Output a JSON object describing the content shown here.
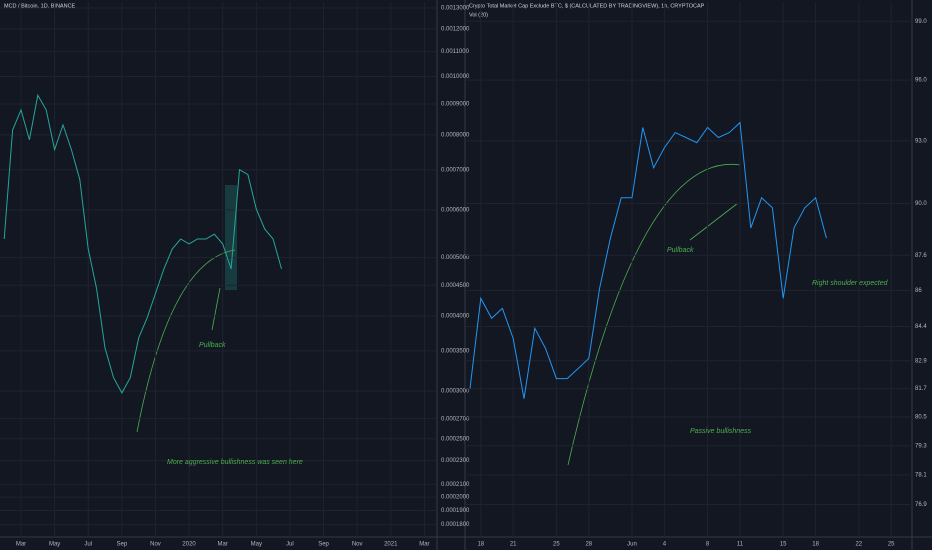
{
  "chart_data": [
    {
      "type": "line",
      "title": "MCD / Bitcoin, 1D, BINANCE",
      "log": true,
      "grid": true,
      "color": "#26a69a",
      "categories": [
        null,
        null,
        "Mar",
        null,
        null,
        null,
        "May",
        null,
        null,
        null,
        "Jul",
        null,
        null,
        null,
        "Sep",
        null,
        null,
        null,
        "Nov",
        null,
        null,
        null,
        "2020",
        null,
        null,
        null,
        "Mar",
        null,
        null,
        null,
        "May",
        null,
        null,
        null,
        "Jul",
        null,
        null,
        null,
        "Sep",
        null,
        null,
        null,
        "Nov",
        null,
        null,
        null,
        "2021",
        null,
        null,
        null,
        "Mar",
        null
      ],
      "values": [
        0.000537,
        0.000815,
        0.00088,
        0.000785,
        0.000931,
        0.00088,
        0.000756,
        0.000831,
        0.000756,
        0.000674,
        0.000517,
        0.000444,
        0.000354,
        0.000316,
        0.000298,
        0.000316,
        0.000368,
        0.000397,
        0.000436,
        0.000479,
        0.000517,
        0.000537,
        0.000527,
        0.000537,
        0.000537,
        0.000547,
        0.000527,
        0.000479,
        0.0007,
        0.000687,
        0.000602,
        0.000558,
        0.000537,
        0.000479,
        null,
        null,
        null,
        null,
        null,
        null,
        null,
        null,
        null,
        null,
        null,
        null,
        null,
        null,
        null,
        null,
        null,
        null
      ],
      "ylim": [
        0.000173,
        0.00133
      ],
      "yticks": [
        {
          "value": 0.0013,
          "label": "0.0013000"
        },
        {
          "value": 0.0012,
          "label": "0.0012000"
        },
        {
          "value": 0.0011,
          "label": "0.0011000"
        },
        {
          "value": 0.001,
          "label": "0.0010000"
        },
        {
          "value": 0.0009,
          "label": "0.0009000"
        },
        {
          "value": 0.0008,
          "label": "0.0008000"
        },
        {
          "value": 0.0007,
          "label": "0.0007000"
        },
        {
          "value": 0.0006,
          "label": "0.0006000"
        },
        {
          "value": 0.0005,
          "label": "0.0005000"
        },
        {
          "value": 0.00045,
          "label": "0.0004500"
        },
        {
          "value": 0.0004,
          "label": "0.0004000"
        },
        {
          "value": 0.00035,
          "label": "0.0003500"
        },
        {
          "value": 0.0003,
          "label": "0.0003000"
        },
        {
          "value": 0.00027,
          "label": "0.0002700"
        },
        {
          "value": 0.00025,
          "label": "0.0002500"
        },
        {
          "value": 0.00023,
          "label": "0.0002300"
        },
        {
          "value": 0.00021,
          "label": "0.0002100"
        },
        {
          "value": 0.0002,
          "label": "0.0002000"
        },
        {
          "value": 0.00019,
          "label": "0.0001900"
        },
        {
          "value": 0.00018,
          "label": "0.0001800"
        }
      ],
      "annotations": [
        "Pullback",
        "More aggressive bullishness was seen here"
      ]
    },
    {
      "type": "line",
      "title": "Crypto Total Market Cap Exclude BTC, $ (CALCULATED BY TRADINGVIEW), 1h, CRYPTOCAP",
      "subtitle": "Vol (20)",
      "log": true,
      "grid": true,
      "color": "#2196f3",
      "categories": [
        null,
        "18",
        null,
        null,
        "21",
        null,
        null,
        null,
        "25",
        null,
        null,
        "28",
        null,
        null,
        null,
        "Jun",
        null,
        null,
        "4",
        null,
        null,
        null,
        "8",
        null,
        null,
        "11",
        null,
        null,
        null,
        "15",
        null,
        null,
        "18",
        null,
        null,
        null,
        "22",
        null,
        null,
        "25",
        null
      ],
      "values": [
        81.7,
        85.65,
        84.76,
        85.2,
        83.87,
        81.27,
        84.32,
        83.43,
        82.13,
        82.13,
        82.56,
        83.0,
        86.1,
        88.39,
        90.27,
        90.27,
        93.65,
        91.7,
        92.67,
        93.4,
        93.16,
        92.91,
        93.65,
        93.16,
        93.4,
        93.89,
        88.86,
        90.27,
        89.8,
        85.65,
        88.86,
        89.8,
        90.27,
        88.39,
        null,
        null,
        null,
        null,
        null,
        null,
        null
      ],
      "ylim": [
        76,
        100
      ],
      "yticks": [
        {
          "value": 99,
          "label": "99.0"
        },
        {
          "value": 96,
          "label": "96.0"
        },
        {
          "value": 93,
          "label": "93.0"
        },
        {
          "value": 90,
          "label": "90.0"
        },
        87.6,
        86,
        84.4,
        82.9,
        81.7,
        80.5,
        79.3,
        78.1,
        76.9
      ],
      "annotations": [
        "Pullback",
        "Passive bullishness",
        "Right shoulder expected"
      ]
    }
  ]
}
